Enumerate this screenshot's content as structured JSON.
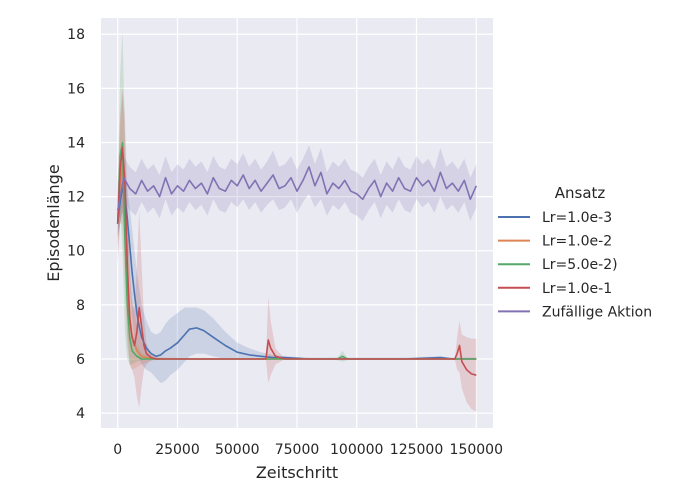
{
  "chart_data": {
    "type": "line",
    "xlabel": "Zeitschritt",
    "ylabel": "Episodenlänge",
    "xlim": [
      -7000,
      157000
    ],
    "ylim": [
      3.45,
      18.6
    ],
    "xticks": [
      0,
      25000,
      50000,
      75000,
      100000,
      125000,
      150000
    ],
    "yticks": [
      4,
      6,
      8,
      10,
      12,
      14,
      16,
      18
    ],
    "grid": true,
    "legend": {
      "title": "Ansatz",
      "placement": "right",
      "entries": [
        "Lr=1.0e-3",
        "Lr=1.0e-2",
        "Lr=5.0e-2)",
        "Lr=1.0e-1",
        "Zufällige Aktion"
      ]
    },
    "series": [
      {
        "name": "Lr=1.0e-3",
        "color": "#4c72b0",
        "x": [
          0,
          1000,
          2000,
          3000,
          4000,
          5000,
          6000,
          7000,
          8000,
          9000,
          10000,
          12000,
          14000,
          16000,
          18000,
          20000,
          22000,
          25000,
          28000,
          30000,
          33000,
          36000,
          40000,
          45000,
          50000,
          55000,
          60000,
          65000,
          70000,
          80000,
          90000,
          100000,
          120000,
          135000,
          140000,
          145000,
          150000
        ],
        "y": [
          11.0,
          11.8,
          12.3,
          12.0,
          11.2,
          10.2,
          9.2,
          8.4,
          7.7,
          7.2,
          6.8,
          6.4,
          6.2,
          6.1,
          6.15,
          6.3,
          6.4,
          6.6,
          6.9,
          7.1,
          7.15,
          7.05,
          6.8,
          6.5,
          6.25,
          6.15,
          6.1,
          6.05,
          6.05,
          6.0,
          6.0,
          6.0,
          6.0,
          6.05,
          6.0,
          6.0,
          6.0
        ],
        "lower": [
          10.5,
          11.0,
          11.4,
          11.0,
          10.0,
          8.8,
          7.6,
          6.8,
          6.3,
          6.0,
          5.8,
          5.6,
          5.5,
          5.3,
          5.1,
          5.2,
          5.4,
          5.6,
          5.9,
          6.1,
          6.2,
          6.2,
          6.1,
          6.0,
          6.0,
          6.0,
          6.0,
          6.0,
          6.0,
          6.0,
          6.0,
          6.0,
          6.0,
          6.0,
          6.0,
          6.0,
          6.0
        ],
        "upper": [
          11.5,
          12.5,
          13.0,
          12.8,
          12.3,
          11.6,
          10.8,
          10.0,
          9.2,
          8.6,
          8.0,
          7.4,
          7.0,
          6.9,
          7.0,
          7.3,
          7.5,
          7.7,
          7.9,
          7.9,
          7.9,
          7.8,
          7.5,
          7.0,
          6.6,
          6.4,
          6.25,
          6.15,
          6.1,
          6.05,
          6.05,
          6.05,
          6.05,
          6.1,
          6.05,
          6.05,
          6.05
        ]
      },
      {
        "name": "Lr=1.0e-2",
        "color": "#dd8452",
        "x": [
          0,
          1000,
          2000,
          3000,
          4000,
          5000,
          6000,
          8000,
          10000,
          15000,
          20000,
          40000,
          60000,
          80000,
          100000,
          120000,
          140000,
          150000
        ],
        "y": [
          11.0,
          12.5,
          13.2,
          11.5,
          9.0,
          7.5,
          6.8,
          6.3,
          6.1,
          6.0,
          6.0,
          6.0,
          6.0,
          6.0,
          6.0,
          6.0,
          6.0,
          6.0
        ],
        "lower": [
          10.2,
          11.0,
          11.0,
          8.5,
          6.5,
          5.8,
          5.6,
          5.7,
          5.8,
          5.95,
          6.0,
          6.0,
          6.0,
          6.0,
          6.0,
          6.0,
          6.0,
          6.0
        ],
        "upper": [
          11.8,
          14.5,
          15.8,
          14.0,
          11.5,
          9.5,
          8.2,
          7.2,
          6.6,
          6.1,
          6.05,
          6.0,
          6.0,
          6.0,
          6.0,
          6.0,
          6.0,
          6.0
        ]
      },
      {
        "name": "Lr=5.0e-2)",
        "color": "#55a868",
        "x": [
          0,
          1000,
          2000,
          3000,
          4000,
          5000,
          6000,
          8000,
          10000,
          15000,
          20000,
          40000,
          60000,
          80000,
          92000,
          94000,
          96000,
          100000,
          120000,
          140000,
          150000
        ],
        "y": [
          11.0,
          13.5,
          14.0,
          10.5,
          8.0,
          6.8,
          6.3,
          6.1,
          6.0,
          6.0,
          6.0,
          6.0,
          6.0,
          6.0,
          6.0,
          6.1,
          6.0,
          6.0,
          6.0,
          6.0,
          6.0
        ],
        "lower": [
          10.0,
          11.5,
          10.0,
          7.0,
          6.0,
          5.8,
          5.8,
          5.9,
          5.95,
          6.0,
          6.0,
          6.0,
          6.0,
          6.0,
          5.95,
          5.9,
          5.95,
          6.0,
          6.0,
          6.0,
          6.0
        ],
        "upper": [
          12.0,
          16.5,
          18.1,
          14.5,
          10.5,
          8.0,
          7.0,
          6.5,
          6.2,
          6.05,
          6.0,
          6.0,
          6.0,
          6.0,
          6.05,
          6.3,
          6.05,
          6.0,
          6.0,
          6.0,
          6.0
        ]
      },
      {
        "name": "Lr=1.0e-1",
        "color": "#c44e52",
        "x": [
          0,
          1000,
          2000,
          3000,
          4000,
          5000,
          6000,
          7000,
          8000,
          9000,
          10000,
          11000,
          12000,
          14000,
          16000,
          20000,
          40000,
          60000,
          62000,
          63000,
          64000,
          66000,
          70000,
          80000,
          100000,
          120000,
          140000,
          141000,
          142000,
          143000,
          144000,
          146000,
          148000,
          150000
        ],
        "y": [
          11.0,
          13.0,
          13.8,
          12.5,
          9.5,
          7.5,
          6.8,
          6.5,
          7.0,
          7.9,
          7.2,
          6.5,
          6.2,
          6.05,
          6.0,
          6.0,
          6.0,
          6.0,
          6.0,
          6.7,
          6.4,
          6.1,
          6.0,
          6.0,
          6.0,
          6.0,
          6.0,
          6.0,
          6.2,
          6.5,
          5.9,
          5.6,
          5.45,
          5.4
        ],
        "lower": [
          9.5,
          11.0,
          11.5,
          10.0,
          7.0,
          5.8,
          5.6,
          5.3,
          4.6,
          4.2,
          5.0,
          5.6,
          5.8,
          5.95,
          6.0,
          6.0,
          6.0,
          6.0,
          6.0,
          5.1,
          5.4,
          5.8,
          6.0,
          6.0,
          6.0,
          6.0,
          6.0,
          6.0,
          5.6,
          5.5,
          4.9,
          4.4,
          4.15,
          4.05
        ],
        "upper": [
          12.5,
          15.0,
          16.0,
          15.0,
          12.0,
          9.2,
          8.0,
          7.8,
          9.5,
          11.5,
          9.5,
          7.5,
          6.6,
          6.15,
          6.05,
          6.0,
          6.0,
          6.0,
          6.0,
          8.3,
          7.4,
          6.4,
          6.0,
          6.0,
          6.0,
          6.0,
          6.0,
          6.0,
          6.8,
          7.4,
          6.9,
          6.8,
          6.75,
          6.75
        ]
      },
      {
        "name": "Zufällige Aktion",
        "color": "#8172b3",
        "x": [
          0,
          2500,
          5000,
          7500,
          10000,
          12500,
          15000,
          17500,
          20000,
          22500,
          25000,
          27500,
          30000,
          32500,
          35000,
          37500,
          40000,
          42500,
          45000,
          47500,
          50000,
          52500,
          55000,
          57500,
          60000,
          62500,
          65000,
          67500,
          70000,
          72500,
          75000,
          77500,
          80000,
          82500,
          85000,
          87500,
          90000,
          92500,
          95000,
          97500,
          100000,
          102500,
          105000,
          107500,
          110000,
          112500,
          115000,
          117500,
          120000,
          122500,
          125000,
          127500,
          130000,
          132500,
          135000,
          137500,
          140000,
          142500,
          145000,
          147500,
          150000
        ],
        "y": [
          11.5,
          12.7,
          12.3,
          12.1,
          12.6,
          12.2,
          12.4,
          12.0,
          12.7,
          12.1,
          12.4,
          12.2,
          12.6,
          12.3,
          12.5,
          12.1,
          12.7,
          12.3,
          12.2,
          12.6,
          12.4,
          12.8,
          12.3,
          12.6,
          12.2,
          12.5,
          12.8,
          12.3,
          12.4,
          12.7,
          12.2,
          12.6,
          13.1,
          12.4,
          12.9,
          12.1,
          12.5,
          12.3,
          12.6,
          12.2,
          12.1,
          11.9,
          12.3,
          12.6,
          12.0,
          12.5,
          12.2,
          12.7,
          12.3,
          12.2,
          12.7,
          12.4,
          12.6,
          12.2,
          12.9,
          12.3,
          12.5,
          12.2,
          12.6,
          11.9,
          12.4
        ],
        "lower": [
          10.5,
          11.9,
          11.5,
          11.3,
          11.8,
          11.4,
          11.6,
          11.2,
          11.9,
          11.3,
          11.6,
          11.4,
          11.8,
          11.5,
          11.7,
          11.3,
          11.9,
          11.5,
          11.4,
          11.8,
          11.6,
          11.9,
          11.5,
          11.8,
          11.4,
          11.7,
          11.9,
          11.5,
          11.6,
          11.9,
          11.4,
          11.8,
          12.1,
          11.6,
          11.9,
          11.3,
          11.7,
          11.5,
          11.8,
          11.4,
          11.3,
          11.1,
          11.5,
          11.8,
          11.2,
          11.7,
          11.4,
          11.9,
          11.5,
          11.4,
          11.9,
          11.6,
          11.8,
          11.4,
          12.0,
          11.5,
          11.7,
          11.4,
          11.8,
          11.1,
          11.6
        ],
        "upper": [
          12.5,
          13.5,
          13.1,
          12.9,
          13.4,
          13.0,
          13.2,
          12.8,
          13.5,
          12.9,
          13.2,
          13.0,
          13.4,
          13.1,
          13.3,
          12.9,
          13.5,
          13.1,
          13.0,
          13.4,
          13.2,
          13.6,
          13.1,
          13.4,
          13.0,
          13.3,
          13.7,
          13.1,
          13.2,
          13.5,
          13.0,
          13.4,
          13.9,
          13.2,
          13.8,
          12.9,
          13.3,
          13.1,
          13.4,
          13.0,
          12.9,
          12.7,
          13.1,
          13.4,
          12.8,
          13.3,
          13.0,
          13.5,
          13.1,
          13.0,
          13.5,
          13.2,
          13.4,
          13.0,
          13.8,
          13.1,
          13.3,
          13.0,
          13.4,
          12.7,
          13.2
        ]
      }
    ]
  }
}
